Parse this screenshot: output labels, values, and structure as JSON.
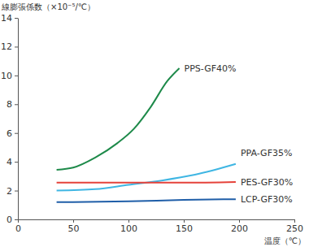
{
  "chart_data": {
    "type": "line",
    "y_label": "線膨張係数（×10⁻⁵/℃）",
    "x_label": "温度（℃）",
    "xlim": [
      0,
      250
    ],
    "xticks": [
      0,
      50,
      100,
      150,
      200,
      250
    ],
    "ylim": [
      0,
      14
    ],
    "yticks": [
      0,
      2,
      4,
      6,
      8,
      10,
      12,
      14
    ],
    "grid": false,
    "series": [
      {
        "name": "PPS-GF40%",
        "color": "#1e8a4a",
        "x": [
          35,
          50,
          70,
          90,
          105,
          120,
          135,
          146
        ],
        "values": [
          3.45,
          3.6,
          4.3,
          5.3,
          6.3,
          7.8,
          9.6,
          10.5
        ]
      },
      {
        "name": "PPA-GF35%",
        "color": "#3fb6e3",
        "x": [
          35,
          70,
          100,
          130,
          160,
          197
        ],
        "values": [
          2.0,
          2.1,
          2.4,
          2.7,
          3.1,
          3.85
        ]
      },
      {
        "name": "PES-GF30%",
        "color": "#e5423a",
        "x": [
          35,
          100,
          150,
          197
        ],
        "values": [
          2.55,
          2.55,
          2.55,
          2.6
        ]
      },
      {
        "name": "LCP-GF30%",
        "color": "#1f5ea8",
        "x": [
          35,
          100,
          150,
          197
        ],
        "values": [
          1.2,
          1.25,
          1.35,
          1.4
        ]
      }
    ]
  }
}
